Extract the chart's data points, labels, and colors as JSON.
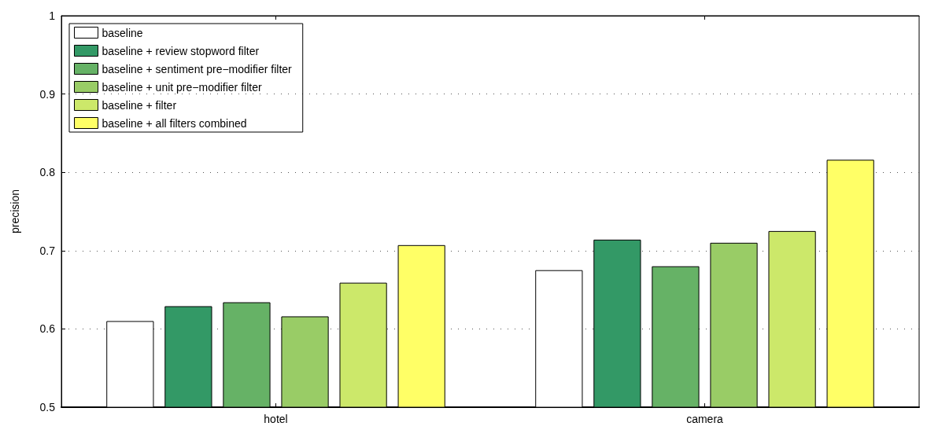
{
  "chart_data": {
    "type": "bar",
    "ylabel": "precision",
    "categories": [
      "hotel",
      "camera"
    ],
    "series": [
      {
        "name": "baseline",
        "color": "#ffffff",
        "values": [
          0.61,
          0.675
        ]
      },
      {
        "name": "baseline + review stopword filter",
        "color": "#339966",
        "values": [
          0.629,
          0.714
        ]
      },
      {
        "name": "baseline + sentiment pre−modifier filter",
        "color": "#66b266",
        "values": [
          0.634,
          0.68
        ]
      },
      {
        "name": "baseline + unit pre−modifier filter",
        "color": "#99cc66",
        "values": [
          0.616,
          0.71
        ]
      },
      {
        "name": "baseline + filter",
        "color": "#cce86a",
        "values": [
          0.659,
          0.725
        ]
      },
      {
        "name": "baseline + all filters combined",
        "color": "#ffff66",
        "values": [
          0.707,
          0.816
        ]
      }
    ],
    "ylim": [
      0.5,
      1
    ],
    "yticks": [
      0.5,
      0.6,
      0.7,
      0.8,
      0.9,
      1
    ],
    "grid": "y",
    "legend": "top left"
  }
}
